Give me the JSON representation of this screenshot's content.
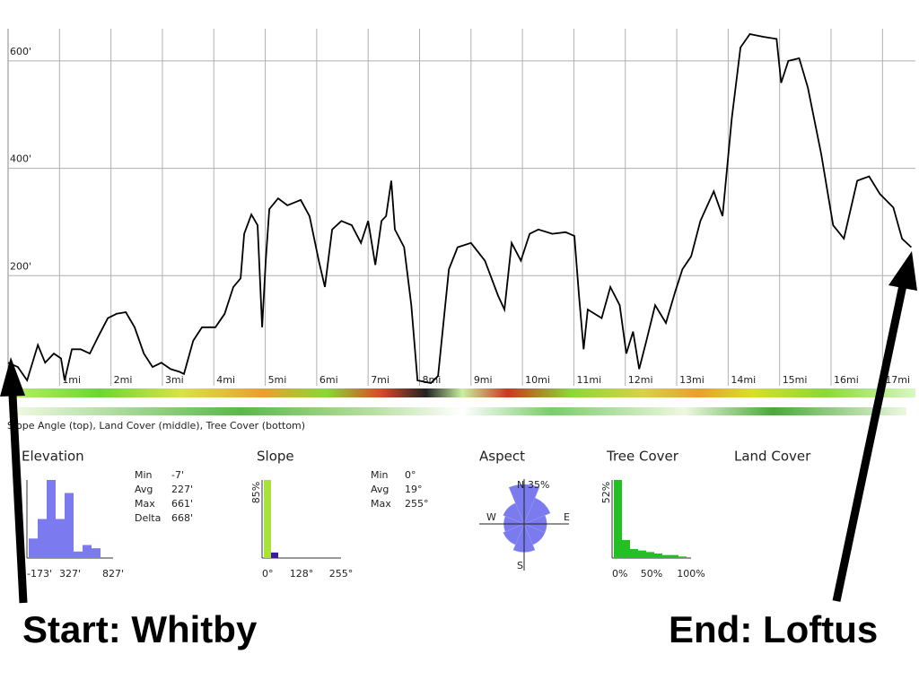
{
  "chart_data": {
    "type": "line",
    "x": [
      0,
      0.19,
      0.37,
      0.58,
      0.72,
      0.89,
      1.03,
      1.1,
      1.24,
      1.41,
      1.59,
      1.76,
      1.94,
      2.11,
      2.29,
      2.46,
      2.64,
      2.81,
      2.98,
      3.16,
      3.33,
      3.42,
      3.6,
      3.77,
      4.03,
      4.21,
      4.38,
      4.52,
      4.59,
      4.73,
      4.85,
      4.94,
      5.01,
      5.08,
      5.25,
      5.43,
      5.69,
      5.86,
      6.04,
      6.16,
      6.3,
      6.48,
      6.68,
      6.86,
      7.0,
      7.14,
      7.26,
      7.35,
      7.45,
      7.52,
      7.7,
      7.84,
      7.96,
      8.22,
      8.36,
      8.57,
      8.74,
      9.0,
      9.27,
      9.53,
      9.65,
      9.79,
      9.97,
      10.14,
      10.31,
      10.58,
      10.84,
      11.01,
      11.1,
      11.19,
      11.27,
      11.54,
      11.71,
      11.89,
      12.02,
      12.15,
      12.27,
      12.41,
      12.58,
      12.79,
      12.97,
      13.11,
      13.28,
      13.46,
      13.72,
      13.89,
      14.07,
      14.24,
      14.42,
      14.68,
      14.94,
      15.03,
      15.17,
      15.38,
      15.55,
      15.81,
      16.04,
      16.25,
      16.51,
      16.74,
      16.95,
      17.21,
      17.38,
      17.56
    ],
    "values": [
      38,
      30,
      5,
      71,
      38,
      55,
      46,
      5,
      63,
      63,
      55,
      88,
      121,
      129,
      132,
      104,
      55,
      30,
      38,
      26,
      21,
      17,
      79,
      104,
      104,
      129,
      179,
      195,
      278,
      314,
      294,
      104,
      228,
      324,
      344,
      331,
      341,
      311,
      228,
      179,
      286,
      302,
      294,
      261,
      302,
      220,
      302,
      311,
      377,
      286,
      253,
      145,
      5,
      0,
      13,
      212,
      253,
      261,
      228,
      162,
      137,
      261,
      228,
      278,
      286,
      278,
      281,
      274,
      162,
      63,
      137,
      121,
      179,
      145,
      55,
      96,
      26,
      79,
      145,
      112,
      170,
      212,
      236,
      302,
      357,
      311,
      493,
      625,
      650,
      645,
      641,
      559,
      600,
      605,
      550,
      426,
      294,
      269,
      377,
      385,
      352,
      327,
      269,
      253
    ],
    "color": "#000000",
    "xlim": [
      0,
      17.64
    ],
    "ylim": [
      -5,
      660
    ],
    "xticks": [
      {
        "value": 1,
        "label": "1mi"
      },
      {
        "value": 2,
        "label": "2mi"
      },
      {
        "value": 3,
        "label": "3mi"
      },
      {
        "value": 4,
        "label": "4mi"
      },
      {
        "value": 5,
        "label": "5mi"
      },
      {
        "value": 6,
        "label": "6mi"
      },
      {
        "value": 7,
        "label": "7mi"
      },
      {
        "value": 8,
        "label": "8mi"
      },
      {
        "value": 9,
        "label": "9mi"
      },
      {
        "value": 10,
        "label": "10mi"
      },
      {
        "value": 11,
        "label": "11mi"
      },
      {
        "value": 12,
        "label": "12mi"
      },
      {
        "value": 13,
        "label": "13mi"
      },
      {
        "value": 14,
        "label": "14mi"
      },
      {
        "value": 15,
        "label": "15mi"
      },
      {
        "value": 16,
        "label": "16mi"
      },
      {
        "value": 17,
        "label": "17mi"
      }
    ],
    "yticks": [
      {
        "value": 200,
        "label": "200'"
      },
      {
        "value": 400,
        "label": "400'"
      },
      {
        "value": 600,
        "label": "600'"
      }
    ],
    "grid": true
  },
  "caption": "Slope Angle (top), Land Cover (middle), Tree Cover (bottom)",
  "panels": {
    "elevation": {
      "title": "Elevation",
      "values": [
        6,
        12,
        24,
        12,
        20,
        2,
        4,
        3
      ],
      "ylim": [
        0,
        24
      ],
      "color": "#7b7bef",
      "xlabels": [
        "-173'",
        "327'",
        "827'"
      ],
      "stats": [
        [
          "Min",
          "-7'"
        ],
        [
          "Avg",
          "227'"
        ],
        [
          "Max",
          "661'"
        ],
        [
          "Delta",
          "668'"
        ]
      ]
    },
    "slope": {
      "title": "Slope",
      "values": [
        85,
        6
      ],
      "colors": [
        "#a8e23a",
        "#3a1aa0"
      ],
      "ylim": [
        0,
        85
      ],
      "ylabel": "85%",
      "xlabels": [
        "0°",
        "128°",
        "255°"
      ],
      "stats": [
        [
          "Min",
          "0°"
        ],
        [
          "Avg",
          "19°"
        ],
        [
          "Max",
          "255°"
        ]
      ]
    },
    "aspect": {
      "title": "Aspect",
      "values": [
        35,
        25,
        20,
        20,
        25,
        20,
        18,
        20
      ],
      "max": 35,
      "color": "#7b7bef",
      "max_label": "35%",
      "directions": [
        "N",
        "E",
        "S",
        "W"
      ]
    },
    "tree_cover": {
      "title": "Tree Cover",
      "values": [
        52,
        12,
        6,
        5,
        4,
        3,
        2,
        2,
        1
      ],
      "ylim": [
        0,
        52
      ],
      "color": "#22c022",
      "ylabel": "52%",
      "xlabels": [
        "0%",
        "50%",
        "100%"
      ]
    },
    "land_cover": {
      "title": "Land Cover"
    }
  },
  "annotations": {
    "start": "Start: Whitby",
    "end": "End: Loftus"
  }
}
